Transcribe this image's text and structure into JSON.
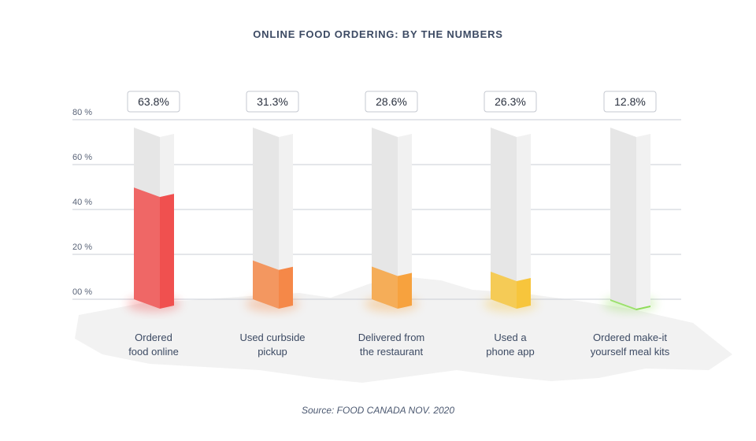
{
  "chart_data": {
    "type": "bar",
    "title": "ONLINE FOOD ORDERING: BY THE NUMBERS",
    "categories": [
      [
        "Ordered",
        "food online"
      ],
      [
        "Used curbside",
        "pickup"
      ],
      [
        "Delivered from",
        "the restaurant"
      ],
      [
        "Used a",
        "phone app"
      ],
      [
        "Ordered make-it",
        "yourself meal kits"
      ]
    ],
    "values": [
      63.8,
      31.3,
      28.6,
      26.3,
      12.8
    ],
    "value_labels": [
      "63.8%",
      "31.3%",
      "28.6%",
      "26.3%",
      "12.8%"
    ],
    "y_ticks": [
      0,
      20,
      40,
      60,
      80
    ],
    "y_tick_labels": [
      "00 %",
      "20 %",
      "40 %",
      "60 %",
      "80 %"
    ],
    "ylim": [
      0,
      80
    ],
    "grid": true,
    "colors": [
      "#f0504f",
      "#f58848",
      "#f7a23e",
      "#f7c53c",
      "#8fdc5a"
    ],
    "empty_color": "#e4e4e4",
    "source": "Source: FOOD CANADA NOV. 2020"
  }
}
